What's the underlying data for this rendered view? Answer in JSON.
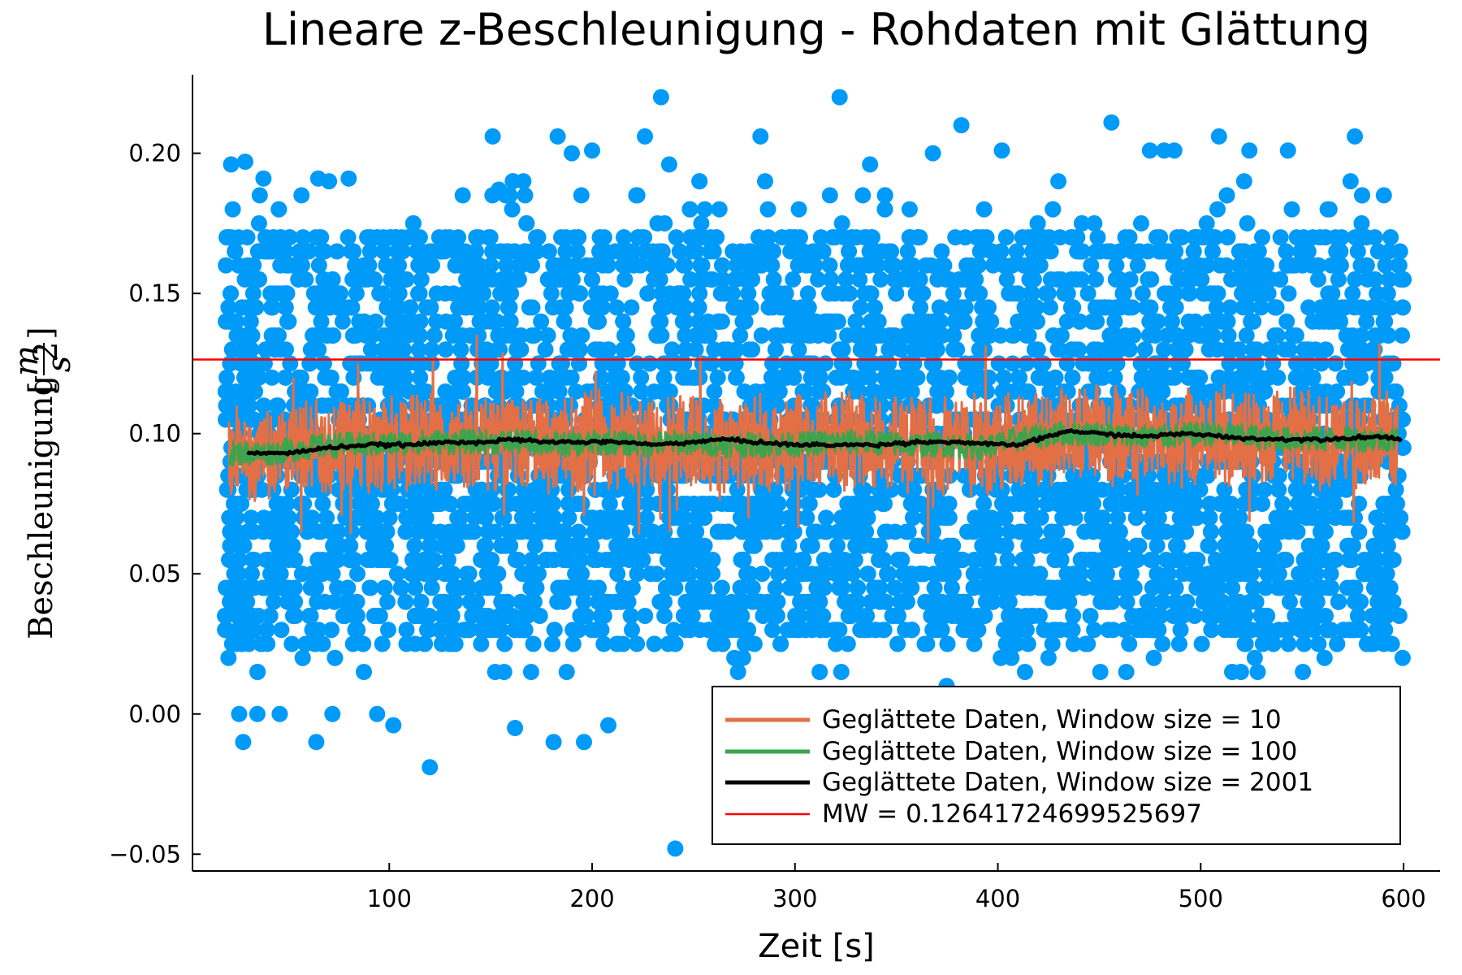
{
  "chart_data": {
    "type": "scatter",
    "title": "Lineare z-Beschleunigung - Rohdaten mit Glättung",
    "xlabel": "Zeit [s]",
    "ylabel": {
      "prefix": "Beschleunigung",
      "frac_num": "m",
      "frac_den": "s",
      "frac_exp": "2"
    },
    "xlim": [
      3,
      618
    ],
    "ylim": [
      -0.056,
      0.228
    ],
    "x_ticks": [
      100,
      200,
      300,
      400,
      500,
      600
    ],
    "x_tick_labels": [
      "100",
      "200",
      "300",
      "400",
      "500",
      "600"
    ],
    "y_ticks": [
      -0.05,
      0.0,
      0.05,
      0.1,
      0.15,
      0.2
    ],
    "y_tick_labels": [
      "−0.05",
      "0.00",
      "0.05",
      "0.10",
      "0.15",
      "0.20"
    ],
    "grid": false,
    "legend_position": "bottom-right",
    "raw_data": {
      "x_range": [
        19,
        600
      ],
      "core_y_range": [
        0.025,
        0.172
      ],
      "quantization_step": 0.005,
      "outliers": [
        {
          "x": 22,
          "y": 0.196
        },
        {
          "x": 26,
          "y": 0.0
        },
        {
          "x": 28,
          "y": -0.01
        },
        {
          "x": 29,
          "y": 0.197
        },
        {
          "x": 35,
          "y": 0.0
        },
        {
          "x": 38,
          "y": 0.191
        },
        {
          "x": 46,
          "y": 0.0
        },
        {
          "x": 64,
          "y": -0.01
        },
        {
          "x": 65,
          "y": 0.191
        },
        {
          "x": 72,
          "y": 0.0
        },
        {
          "x": 80,
          "y": 0.191
        },
        {
          "x": 94,
          "y": 0.0
        },
        {
          "x": 102,
          "y": -0.004
        },
        {
          "x": 120,
          "y": -0.019
        },
        {
          "x": 151,
          "y": 0.206
        },
        {
          "x": 154,
          "y": 0.187
        },
        {
          "x": 162,
          "y": -0.005
        },
        {
          "x": 181,
          "y": -0.01
        },
        {
          "x": 183,
          "y": 0.206
        },
        {
          "x": 190,
          "y": 0.2
        },
        {
          "x": 196,
          "y": -0.01
        },
        {
          "x": 200,
          "y": 0.201
        },
        {
          "x": 208,
          "y": -0.004
        },
        {
          "x": 226,
          "y": 0.206
        },
        {
          "x": 234,
          "y": 0.22
        },
        {
          "x": 238,
          "y": 0.196
        },
        {
          "x": 241,
          "y": -0.048
        },
        {
          "x": 283,
          "y": 0.206
        },
        {
          "x": 322,
          "y": 0.22
        },
        {
          "x": 337,
          "y": 0.196
        },
        {
          "x": 368,
          "y": 0.2
        },
        {
          "x": 382,
          "y": 0.21
        },
        {
          "x": 402,
          "y": 0.201
        },
        {
          "x": 456,
          "y": 0.211
        },
        {
          "x": 475,
          "y": 0.201
        },
        {
          "x": 482,
          "y": 0.201
        },
        {
          "x": 487,
          "y": 0.201
        },
        {
          "x": 509,
          "y": 0.206
        },
        {
          "x": 524,
          "y": 0.201
        },
        {
          "x": 543,
          "y": 0.201
        },
        {
          "x": 576,
          "y": 0.206
        }
      ]
    },
    "series": [
      {
        "name": "Geglättete Daten, Window size = 10",
        "color": "#e26f46",
        "start_x": 21,
        "end_x": 597,
        "center": [
          0.093,
          0.093,
          0.095,
          0.096,
          0.096,
          0.097,
          0.097,
          0.097,
          0.097,
          0.096,
          0.097,
          0.096,
          0.097,
          0.096,
          0.096,
          0.096,
          0.097,
          0.097,
          0.096,
          0.096,
          0.095,
          0.098,
          0.1,
          0.1,
          0.099,
          0.099,
          0.1,
          0.099,
          0.098,
          0.098,
          0.098,
          0.098
        ],
        "band_halfwidth": 0.015,
        "max_y": 0.139,
        "min_y": 0.057
      },
      {
        "name": "Geglättete Daten, Window size = 100",
        "color": "#3da44d",
        "start_x": 21,
        "end_x": 597,
        "center": [
          0.093,
          0.093,
          0.095,
          0.096,
          0.096,
          0.097,
          0.097,
          0.097,
          0.097,
          0.096,
          0.097,
          0.096,
          0.097,
          0.096,
          0.096,
          0.096,
          0.097,
          0.097,
          0.096,
          0.096,
          0.095,
          0.098,
          0.1,
          0.1,
          0.099,
          0.099,
          0.1,
          0.099,
          0.098,
          0.098,
          0.098,
          0.098
        ],
        "band_halfwidth": 0.004
      },
      {
        "name": "Geglättete Daten, Window size = 2001",
        "color": "#000000",
        "x": [
          30,
          50,
          70,
          90,
          110,
          130,
          150,
          160,
          175,
          195,
          215,
          230,
          250,
          265,
          280,
          300,
          320,
          340,
          360,
          380,
          400,
          410,
          425,
          435,
          450,
          470,
          495,
          510,
          530,
          560,
          590,
          599
        ],
        "values": [
          0.093,
          0.093,
          0.095,
          0.096,
          0.096,
          0.097,
          0.097,
          0.098,
          0.097,
          0.097,
          0.097,
          0.096,
          0.097,
          0.098,
          0.097,
          0.096,
          0.096,
          0.096,
          0.097,
          0.097,
          0.096,
          0.096,
          0.099,
          0.101,
          0.1,
          0.099,
          0.1,
          0.099,
          0.098,
          0.098,
          0.099,
          0.098
        ]
      },
      {
        "name": "MW = 0.12641724699525697",
        "color": "#ff0000",
        "hline_y": 0.12641724699525697
      }
    ],
    "colors": {
      "raw": "#009af9",
      "axis": "#000000"
    }
  }
}
